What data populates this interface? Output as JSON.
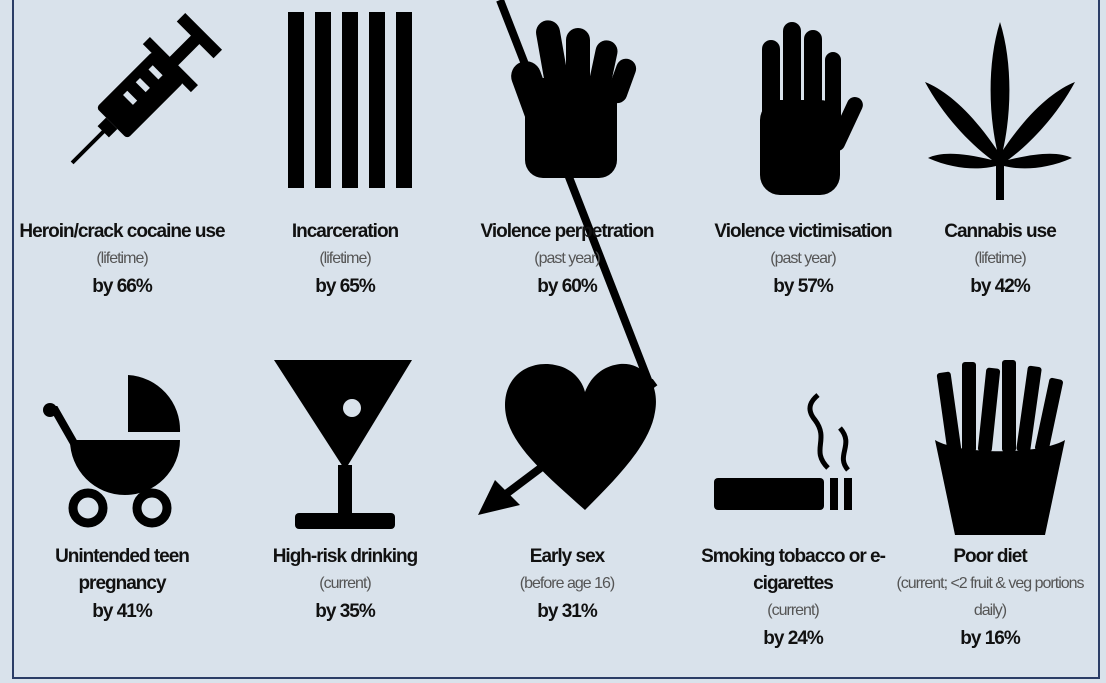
{
  "items": [
    {
      "title": "Heroin/crack cocaine use",
      "note": "(lifetime)",
      "value": "by 66%"
    },
    {
      "title": "Incarceration",
      "note": "(lifetime)",
      "value": "by 65%"
    },
    {
      "title": "Violence perpetration",
      "note": "(past year)",
      "value": "by 60%"
    },
    {
      "title": "Violence victimisation",
      "note": "(past year)",
      "value": "by 57%"
    },
    {
      "title": "Cannabis use",
      "note": "(lifetime)",
      "value": "by 42%"
    },
    {
      "title": "Unintended teen pregnancy",
      "value": "by 41%"
    },
    {
      "title": "High-risk drinking",
      "note": "(current)",
      "value": "by 35%"
    },
    {
      "title": "Early sex",
      "note": "(before age 16)",
      "value": "by 31%"
    },
    {
      "title": "Smoking tobacco or e-cigarettes",
      "note": "(current)",
      "value": "by 24%"
    },
    {
      "title": "Poor diet",
      "note": "(current; <2 fruit & veg portions daily)",
      "value": "by 16%"
    }
  ]
}
